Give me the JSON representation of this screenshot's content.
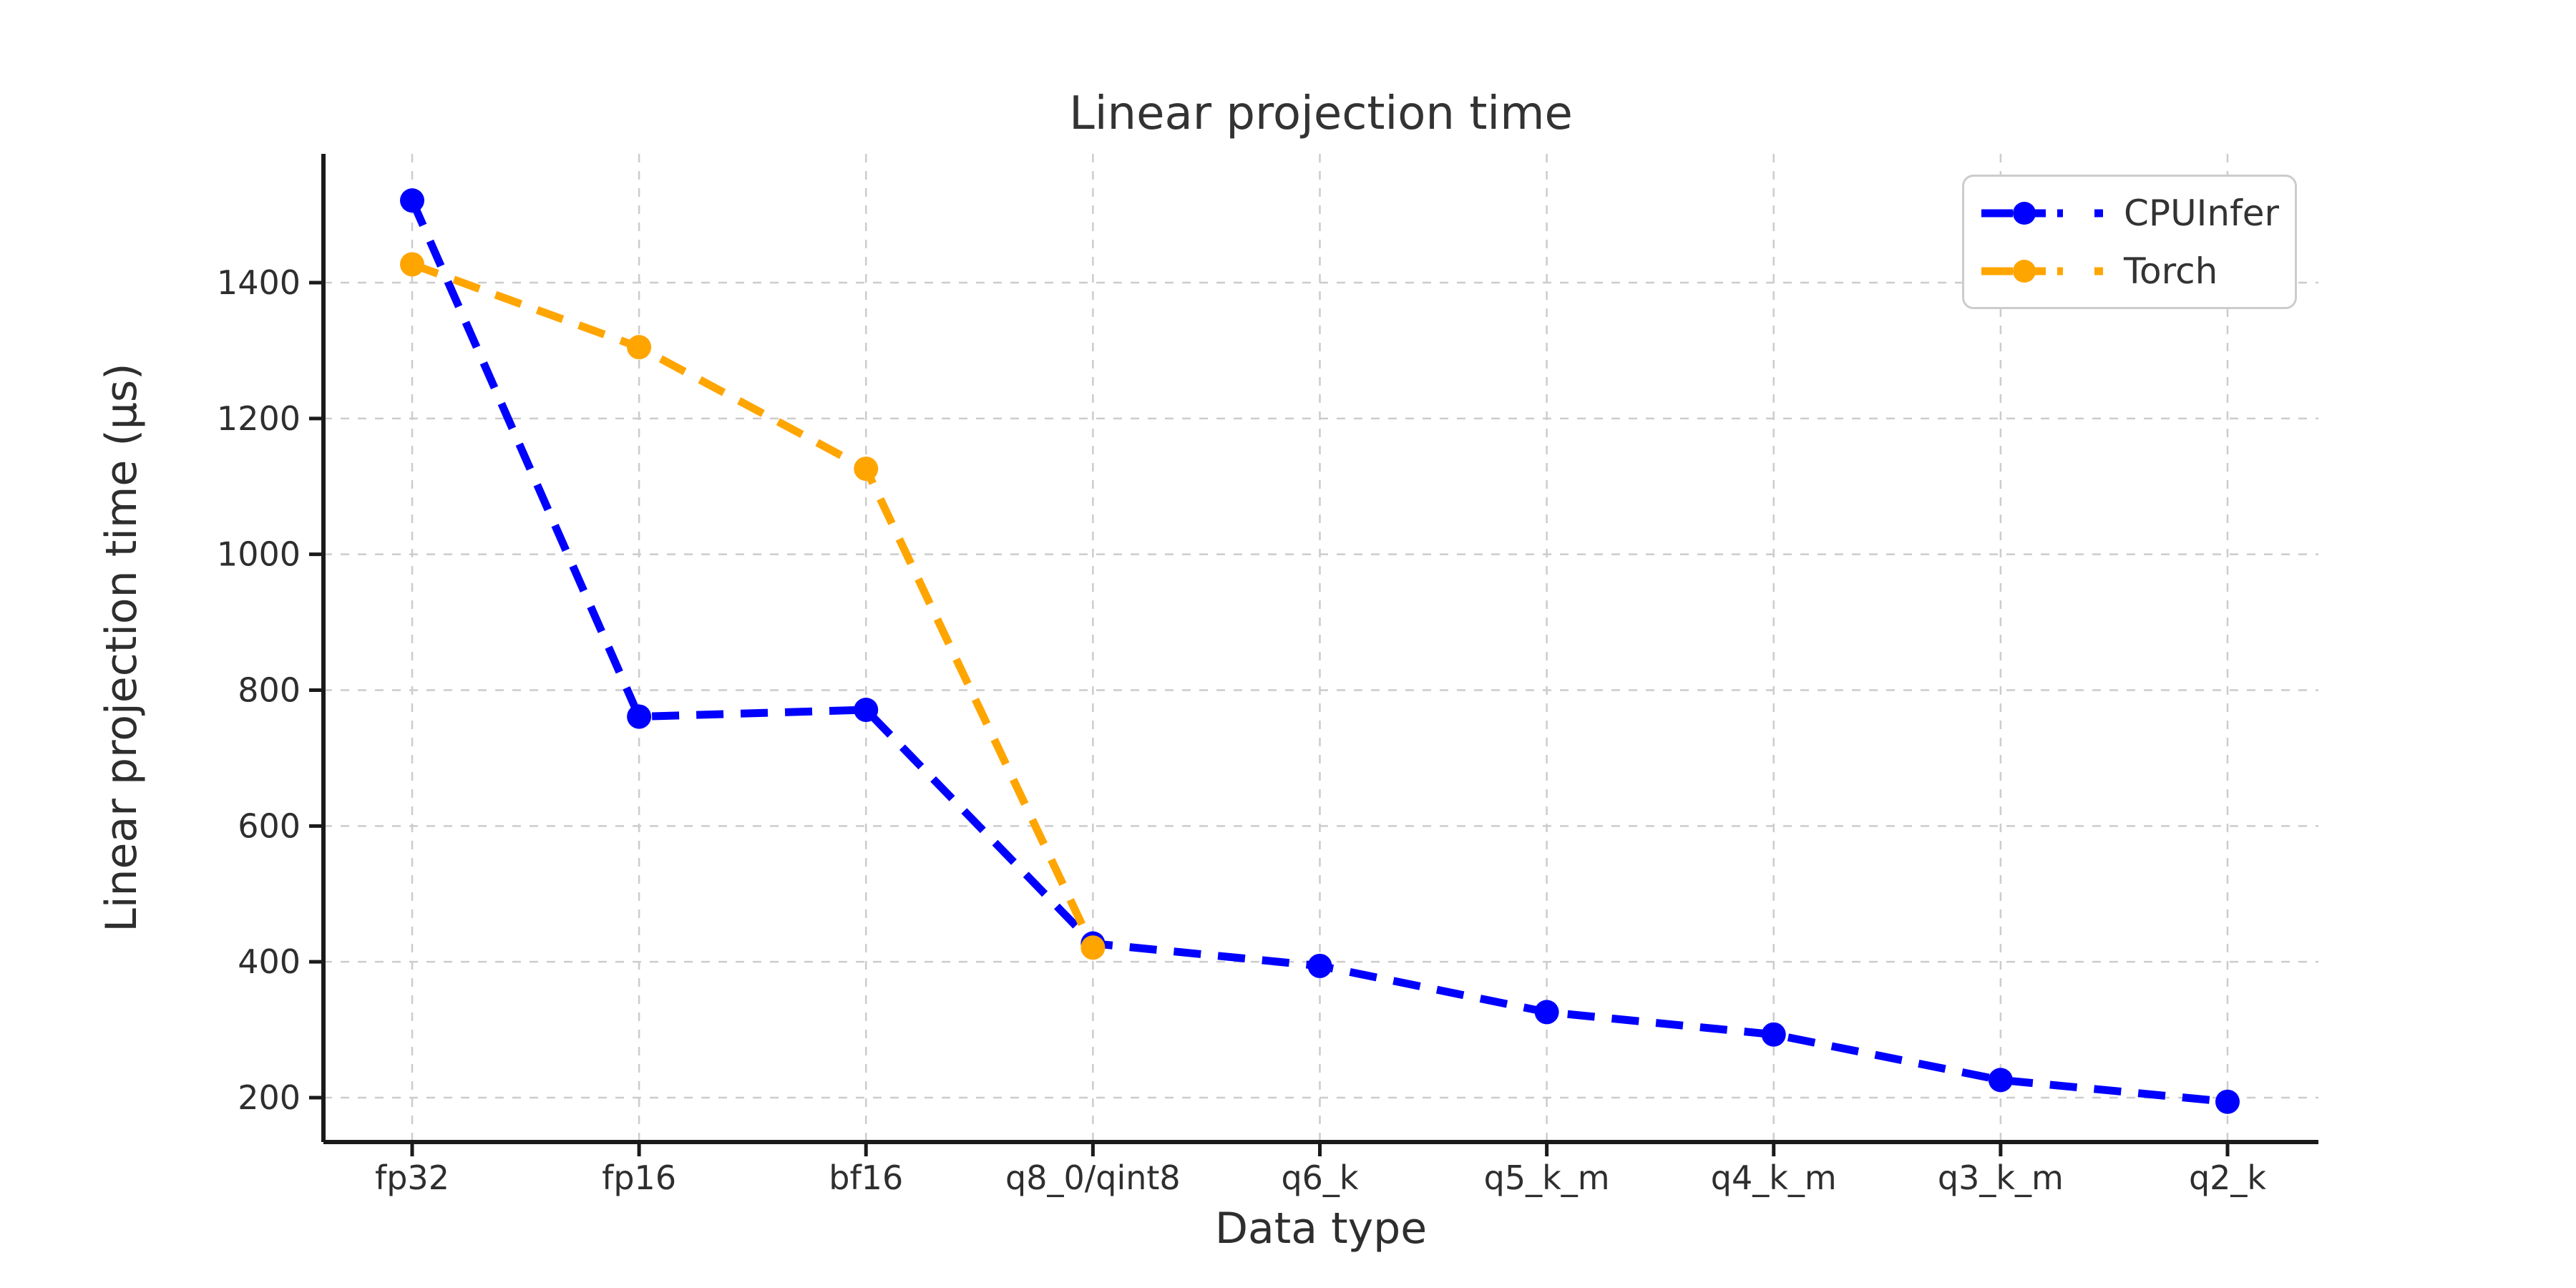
{
  "chart_data": {
    "type": "line",
    "title": "Linear projection time",
    "xlabel": "Data type",
    "ylabel": "Linear projection time (μs)",
    "categories": [
      "fp32",
      "fp16",
      "bf16",
      "q8_0/qint8",
      "q6_k",
      "q5_k_m",
      "q4_k_m",
      "q3_k_m",
      "q2_k"
    ],
    "series": [
      {
        "name": "CPUInfer",
        "color": "#0000ff",
        "values": [
          1521,
          761,
          771,
          427,
          394,
          326,
          293,
          226,
          194
        ]
      },
      {
        "name": "Torch",
        "color": "#ffa500",
        "values": [
          1427,
          1305,
          1126,
          421,
          null,
          null,
          null,
          null,
          null
        ]
      }
    ],
    "yticks": [
      200,
      400,
      600,
      800,
      1000,
      1200,
      1400
    ],
    "ylim": [
      135,
      1590
    ],
    "grid": true,
    "grid_style": "dashed",
    "grid_color": "#cccccc",
    "line_style": "dashed",
    "marker": "circle",
    "legend_position": "upper right",
    "spine_color": "#1a1a1a",
    "background_color": "#ffffff"
  }
}
